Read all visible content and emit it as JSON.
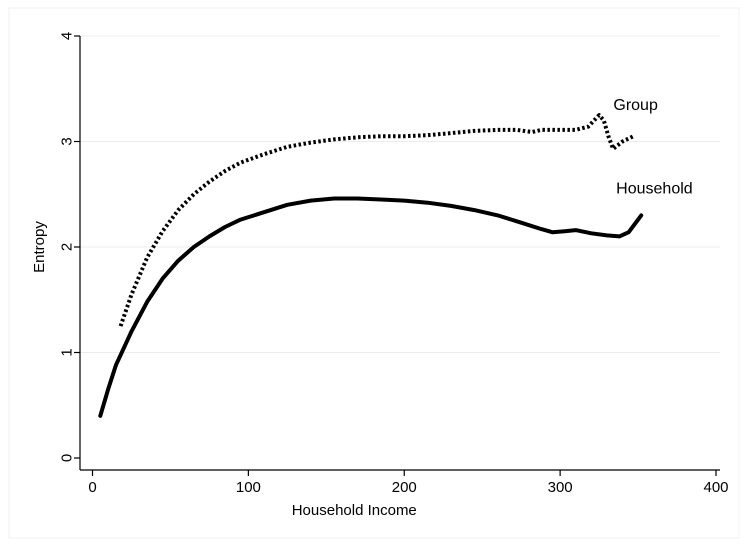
{
  "chart_data": {
    "type": "line",
    "title": "",
    "xlabel": "Household Income",
    "ylabel": "Entropy",
    "xlim": [
      0,
      400
    ],
    "ylim": [
      0,
      4
    ],
    "xticks": [
      0,
      100,
      200,
      300,
      400
    ],
    "yticks": [
      0,
      1,
      2,
      3,
      4
    ],
    "grid": "horizontal",
    "legend": "none",
    "series": [
      {
        "name": "Group",
        "line_style": "dotted",
        "color": "#000000",
        "points": [
          [
            18,
            1.25
          ],
          [
            25,
            1.55
          ],
          [
            35,
            1.9
          ],
          [
            45,
            2.15
          ],
          [
            55,
            2.35
          ],
          [
            65,
            2.5
          ],
          [
            75,
            2.62
          ],
          [
            85,
            2.72
          ],
          [
            95,
            2.8
          ],
          [
            110,
            2.88
          ],
          [
            125,
            2.95
          ],
          [
            140,
            2.99
          ],
          [
            155,
            3.02
          ],
          [
            170,
            3.04
          ],
          [
            185,
            3.05
          ],
          [
            200,
            3.05
          ],
          [
            215,
            3.06
          ],
          [
            230,
            3.08
          ],
          [
            245,
            3.1
          ],
          [
            260,
            3.11
          ],
          [
            272,
            3.11
          ],
          [
            282,
            3.09
          ],
          [
            288,
            3.11
          ],
          [
            300,
            3.11
          ],
          [
            310,
            3.11
          ],
          [
            318,
            3.14
          ],
          [
            325,
            3.25
          ],
          [
            328,
            3.2
          ],
          [
            331,
            3.05
          ],
          [
            334,
            2.93
          ],
          [
            340,
            3.0
          ],
          [
            347,
            3.05
          ]
        ]
      },
      {
        "name": "Household",
        "line_style": "solid",
        "color": "#000000",
        "points": [
          [
            5,
            0.4
          ],
          [
            10,
            0.65
          ],
          [
            15,
            0.88
          ],
          [
            25,
            1.2
          ],
          [
            35,
            1.48
          ],
          [
            45,
            1.7
          ],
          [
            55,
            1.87
          ],
          [
            65,
            2.0
          ],
          [
            75,
            2.1
          ],
          [
            85,
            2.19
          ],
          [
            95,
            2.26
          ],
          [
            110,
            2.33
          ],
          [
            125,
            2.4
          ],
          [
            140,
            2.44
          ],
          [
            155,
            2.46
          ],
          [
            170,
            2.46
          ],
          [
            185,
            2.45
          ],
          [
            200,
            2.44
          ],
          [
            215,
            2.42
          ],
          [
            230,
            2.39
          ],
          [
            245,
            2.35
          ],
          [
            260,
            2.3
          ],
          [
            275,
            2.23
          ],
          [
            288,
            2.17
          ],
          [
            295,
            2.14
          ],
          [
            303,
            2.15
          ],
          [
            310,
            2.16
          ],
          [
            320,
            2.13
          ],
          [
            330,
            2.11
          ],
          [
            338,
            2.1
          ],
          [
            344,
            2.14
          ],
          [
            352,
            2.3
          ]
        ]
      }
    ]
  }
}
